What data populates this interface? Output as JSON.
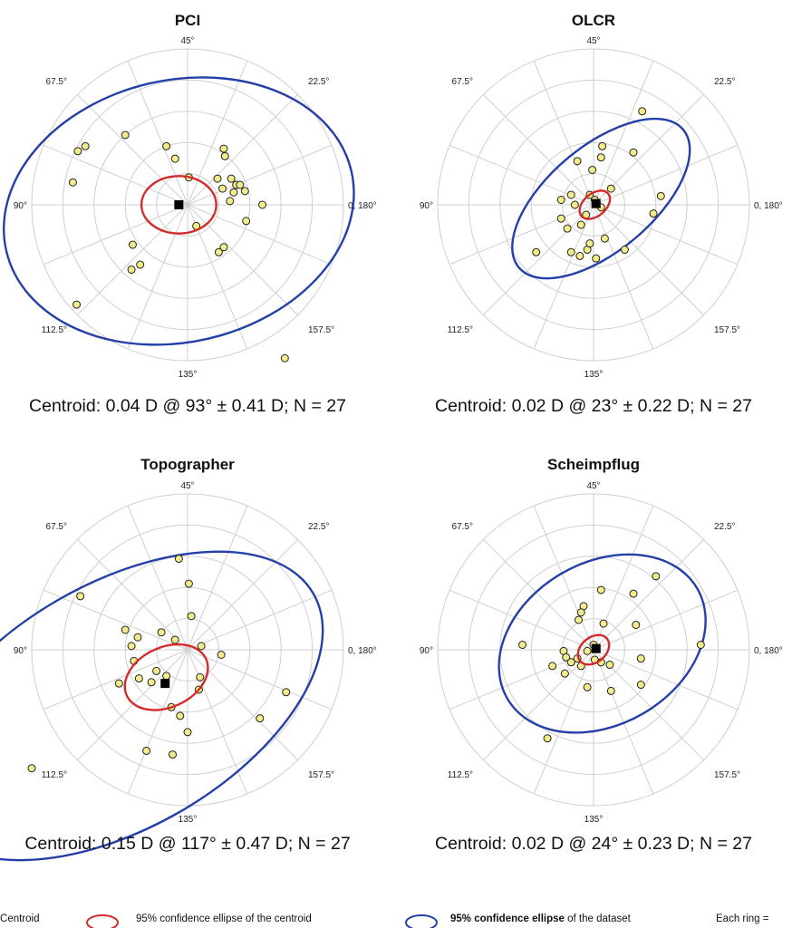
{
  "chart_data": [
    {
      "type": "scatter",
      "title": "PCI",
      "caption": "Centroid: 0.04 D @ 93° ± 0.41 D; N = 27",
      "angle_labels": [
        "0, 180°",
        "22.5°",
        "45°",
        "67.5°",
        "90°",
        "112.5°",
        "135°",
        "157.5°"
      ],
      "points": [
        [
          -0.5,
          0.56
        ],
        [
          -0.82,
          0.47
        ],
        [
          -0.88,
          0.43
        ],
        [
          -0.92,
          0.18
        ],
        [
          -0.1,
          0.37
        ],
        [
          -0.17,
          0.47
        ],
        [
          0.29,
          0.45
        ],
        [
          0.3,
          0.39
        ],
        [
          0.01,
          0.22
        ],
        [
          0.24,
          0.21
        ],
        [
          0.35,
          0.21
        ],
        [
          0.39,
          0.16
        ],
        [
          0.42,
          0.16
        ],
        [
          0.46,
          0.11
        ],
        [
          0.37,
          0.1
        ],
        [
          0.34,
          0.03
        ],
        [
          0.28,
          0.13
        ],
        [
          0.6,
          0.0
        ],
        [
          0.47,
          -0.13
        ],
        [
          0.07,
          -0.17
        ],
        [
          0.29,
          -0.34
        ],
        [
          0.25,
          -0.38
        ],
        [
          -0.44,
          -0.32
        ],
        [
          -0.38,
          -0.48
        ],
        [
          -0.45,
          -0.52
        ],
        [
          -0.89,
          -0.8
        ],
        [
          0.78,
          -1.23
        ]
      ],
      "centroid": [
        -0.07,
        0.0
      ],
      "ellipse_centroid": {
        "center": [
          -0.07,
          0.0
        ],
        "rx": 0.3,
        "ry": 0.23,
        "rotation_deg": 0
      },
      "ellipse_dataset": {
        "center": [
          -0.07,
          -0.05
        ],
        "rx": 1.42,
        "ry": 1.05,
        "rotation_deg": -13
      }
    },
    {
      "type": "scatter",
      "title": "OLCR",
      "caption": "Centroid: 0.02 D @ 23° ± 0.22 D; N = 27",
      "angle_labels": [
        "0, 180°",
        "22.5°",
        "45°",
        "67.5°",
        "90°",
        "112.5°",
        "135°",
        "157.5°"
      ],
      "points": [
        [
          0.39,
          0.75
        ],
        [
          0.32,
          0.42
        ],
        [
          0.07,
          0.47
        ],
        [
          0.06,
          0.38
        ],
        [
          -0.13,
          0.35
        ],
        [
          -0.01,
          0.28
        ],
        [
          -0.18,
          0.08
        ],
        [
          -0.26,
          0.04
        ],
        [
          -0.15,
          0.0
        ],
        [
          -0.03,
          0.08
        ],
        [
          0.01,
          0.04
        ],
        [
          0.14,
          0.13
        ],
        [
          0.06,
          -0.02
        ],
        [
          -0.06,
          -0.08
        ],
        [
          -0.1,
          -0.16
        ],
        [
          -0.21,
          -0.19
        ],
        [
          -0.26,
          -0.11
        ],
        [
          0.09,
          -0.27
        ],
        [
          0.02,
          -0.43
        ],
        [
          -0.05,
          -0.36
        ],
        [
          -0.18,
          -0.38
        ],
        [
          0.25,
          -0.36
        ],
        [
          -0.46,
          -0.38
        ],
        [
          0.54,
          0.07
        ],
        [
          0.48,
          -0.07
        ],
        [
          -0.11,
          -0.41
        ],
        [
          -0.03,
          -0.31
        ]
      ],
      "centroid": [
        0.02,
        0.01
      ],
      "ellipse_centroid": {
        "center": [
          0.01,
          0.0
        ],
        "rx": 0.14,
        "ry": 0.09,
        "rotation_deg": -40
      },
      "ellipse_dataset": {
        "center": [
          0.06,
          0.05
        ],
        "rx": 0.86,
        "ry": 0.42,
        "rotation_deg": -40
      }
    },
    {
      "type": "scatter",
      "title": "Topographer",
      "caption": "Centroid: 0.15 D @ 117° ± 0.47 D; N = 27",
      "angle_labels": [
        "0, 180°",
        "22.5°",
        "45°",
        "67.5°",
        "90°",
        "112.5°",
        "135°",
        "157.5°"
      ],
      "points": [
        [
          -0.07,
          0.73
        ],
        [
          0.01,
          0.53
        ],
        [
          -0.86,
          0.43
        ],
        [
          -0.5,
          0.16
        ],
        [
          -0.4,
          0.1
        ],
        [
          -0.45,
          0.03
        ],
        [
          -0.43,
          -0.09
        ],
        [
          -0.21,
          0.14
        ],
        [
          -0.1,
          0.08
        ],
        [
          0.03,
          0.27
        ],
        [
          0.11,
          0.03
        ],
        [
          0.27,
          -0.04
        ],
        [
          -0.39,
          -0.23
        ],
        [
          -0.29,
          -0.26
        ],
        [
          -0.25,
          -0.17
        ],
        [
          -0.17,
          -0.21
        ],
        [
          0.1,
          -0.22
        ],
        [
          0.09,
          -0.32
        ],
        [
          -0.55,
          -0.27
        ],
        [
          -0.13,
          -0.46
        ],
        [
          -0.06,
          -0.53
        ],
        [
          0.0,
          -0.66
        ],
        [
          -0.33,
          -0.81
        ],
        [
          -0.12,
          -0.84
        ],
        [
          0.79,
          -0.34
        ],
        [
          0.58,
          -0.55
        ],
        [
          -1.25,
          -0.95
        ]
      ],
      "centroid": [
        -0.18,
        -0.27
      ],
      "ellipse_centroid": {
        "center": [
          -0.17,
          -0.22
        ],
        "rx": 0.35,
        "ry": 0.24,
        "rotation_deg": -25
      },
      "ellipse_dataset": {
        "center": [
          -0.55,
          -0.45
        ],
        "rx": 1.8,
        "ry": 0.98,
        "rotation_deg": -30
      }
    },
    {
      "type": "scatter",
      "title": "Scheimpflug",
      "caption": "Centroid: 0.02 D @ 24° ± 0.23 D; N = 27",
      "angle_labels": [
        "0, 180°",
        "22.5°",
        "45°",
        "67.5°",
        "90°",
        "112.5°",
        "135°",
        "157.5°"
      ],
      "points": [
        [
          0.5,
          0.59
        ],
        [
          0.32,
          0.45
        ],
        [
          0.06,
          0.48
        ],
        [
          -0.08,
          0.35
        ],
        [
          -0.1,
          0.3
        ],
        [
          0.08,
          0.21
        ],
        [
          -0.12,
          0.24
        ],
        [
          0.34,
          0.2
        ],
        [
          0.86,
          0.04
        ],
        [
          -0.57,
          0.04
        ],
        [
          -0.24,
          -0.01
        ],
        [
          -0.22,
          -0.06
        ],
        [
          -0.18,
          -0.1
        ],
        [
          -0.13,
          -0.07
        ],
        [
          -0.1,
          -0.13
        ],
        [
          -0.05,
          -0.01
        ],
        [
          0.01,
          -0.08
        ],
        [
          0.06,
          -0.1
        ],
        [
          0.13,
          -0.12
        ],
        [
          0.38,
          -0.07
        ],
        [
          -0.33,
          -0.13
        ],
        [
          -0.23,
          -0.19
        ],
        [
          0.38,
          -0.28
        ],
        [
          -0.05,
          -0.3
        ],
        [
          0.14,
          -0.33
        ],
        [
          -0.37,
          -0.71
        ],
        [
          0.0,
          0.04
        ]
      ],
      "centroid": [
        0.02,
        0.01
      ],
      "ellipse_centroid": {
        "center": [
          0.0,
          0.0
        ],
        "rx": 0.14,
        "ry": 0.1,
        "rotation_deg": -40
      },
      "ellipse_dataset": {
        "center": [
          0.07,
          0.05
        ],
        "rx": 0.88,
        "ry": 0.65,
        "rotation_deg": -30
      }
    }
  ],
  "legend": {
    "centroid": "Centroid",
    "centroid_ellipse": "95% confidence ellipse of  the centroid",
    "dataset_ellipse_prefix": "95% confidence ellipse",
    "dataset_ellipse_suffix": " of the dataset",
    "ring": "Each ring ="
  },
  "colors": {
    "centroid_ellipse": "#d42a2a",
    "dataset_ellipse": "#2440a8",
    "point_fill": "#f2ec8a",
    "grid": "#cfcfcf"
  }
}
